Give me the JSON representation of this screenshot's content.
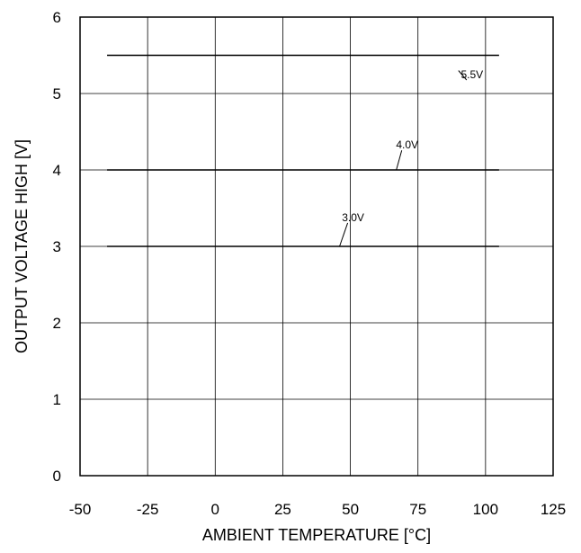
{
  "chart_data": {
    "type": "line",
    "title": "",
    "xlabel": "AMBIENT TEMPERATURE [°C]",
    "ylabel": "OUTPUT VOLTAGE HIGH [V]",
    "xlim": [
      -50,
      125
    ],
    "ylim": [
      0,
      6
    ],
    "xticks": [
      "-50",
      "-25",
      "0",
      "25",
      "50",
      "75",
      "100",
      "125"
    ],
    "yticks": [
      "0",
      "1",
      "2",
      "3",
      "4",
      "5",
      "6"
    ],
    "grid": true,
    "series": [
      {
        "name": "5.5V",
        "x": [
          -40,
          105
        ],
        "y": [
          5.5,
          5.5
        ],
        "label_at": {
          "x": 95,
          "y": 5.2
        },
        "leader_from": {
          "x": 90,
          "y": 5.3
        }
      },
      {
        "name": "4.0V",
        "x": [
          -40,
          105
        ],
        "y": [
          4.0,
          4.0
        ],
        "label_at": {
          "x": 71,
          "y": 4.28
        },
        "leader_from": {
          "x": 67,
          "y": 4.0
        }
      },
      {
        "name": "3.0V",
        "x": [
          -40,
          105
        ],
        "y": [
          3.0,
          3.0
        ],
        "label_at": {
          "x": 51,
          "y": 3.33
        },
        "leader_from": {
          "x": 46,
          "y": 3.0
        }
      }
    ]
  }
}
